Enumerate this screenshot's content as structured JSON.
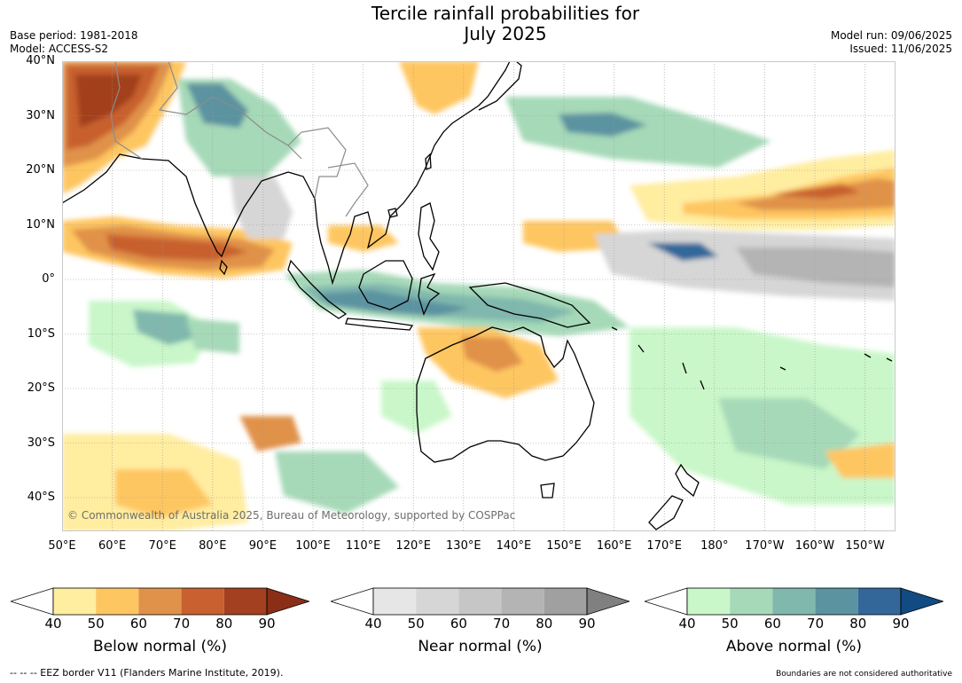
{
  "title_line1": "Tercile rainfall probabilities for",
  "title_line2": "July 2025",
  "meta_left": [
    "Base period: 1981-2018",
    "Model: ACCESS-S2"
  ],
  "meta_right": [
    "Model run: 09/06/2025",
    "Issued: 11/06/2025"
  ],
  "lat_labels": [
    "40°N",
    "30°N",
    "20°N",
    "10°N",
    "0°",
    "10°S",
    "20°S",
    "30°S",
    "40°S"
  ],
  "lon_labels": [
    "50°E",
    "60°E",
    "70°E",
    "80°E",
    "90°E",
    "100°E",
    "110°E",
    "120°E",
    "130°E",
    "140°E",
    "150°E",
    "160°E",
    "170°E",
    "180°",
    "170°W",
    "160°W",
    "150°W"
  ],
  "copyright": "© Commonwealth of Australia 2025, Bureau of Meteorology, supported by COSPPac",
  "colorbars": [
    {
      "caption": "Below normal (%)",
      "ticks": [
        "40",
        "50",
        "60",
        "70",
        "80",
        "90"
      ],
      "colors": [
        "#ffeda0",
        "#fec661",
        "#e0924a",
        "#c8612f",
        "#a2401f"
      ],
      "over": "#8a2e17"
    },
    {
      "caption": "Near normal (%)",
      "ticks": [
        "40",
        "50",
        "60",
        "70",
        "80",
        "90"
      ],
      "colors": [
        "#e6e6e6",
        "#d6d6d6",
        "#c6c6c6",
        "#b4b4b4",
        "#a0a0a0"
      ],
      "over": "#808080"
    },
    {
      "caption": "Above normal (%)",
      "ticks": [
        "40",
        "50",
        "60",
        "70",
        "80",
        "90"
      ],
      "colors": [
        "#c9f7c9",
        "#a6d9b8",
        "#80b8ad",
        "#5b93a0",
        "#33679a"
      ],
      "over": "#124a82"
    }
  ],
  "footnote_left": "--  --  -- EEZ border V11 (Flanders Marine Institute, 2019).",
  "footnote_right": "Boundaries are not considered authoritative",
  "colors": {
    "coast": "#000000",
    "border": "#8c8c8c",
    "grid": "#9a9a9a"
  }
}
